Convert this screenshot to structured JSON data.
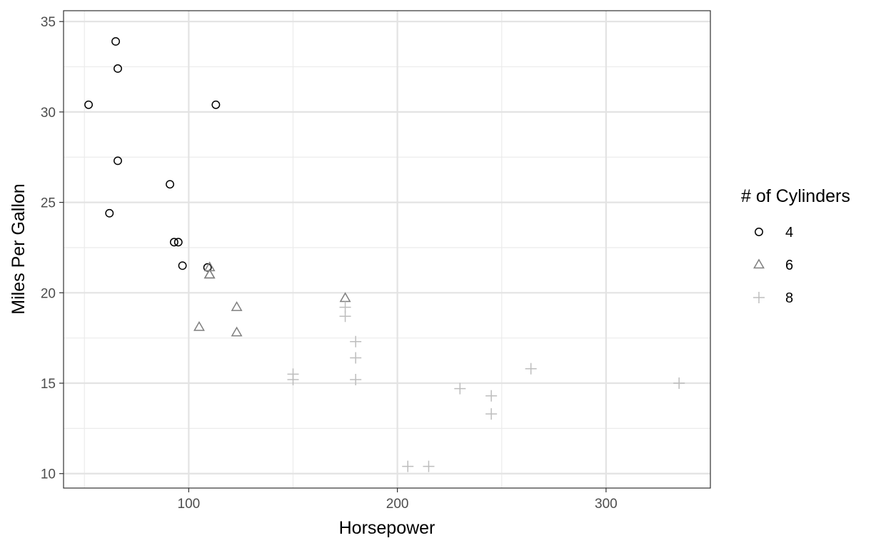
{
  "chart_data": {
    "type": "scatter",
    "title": "",
    "xlabel": "Horsepower",
    "ylabel": "Miles Per Gallon",
    "xlim": [
      40,
      350
    ],
    "ylim": [
      9.2,
      35.6
    ],
    "x_ticks": [
      100,
      200,
      300
    ],
    "y_ticks": [
      10,
      15,
      20,
      25,
      30,
      35
    ],
    "x_tick_labels": [
      "100",
      "200",
      "300"
    ],
    "y_tick_labels": [
      "10",
      "15",
      "20",
      "25",
      "30",
      "35"
    ],
    "grid": true,
    "legend": {
      "title": "# of Cylinders",
      "position": "right"
    },
    "series": [
      {
        "name": "4",
        "shape": "circle",
        "color": "#000000",
        "points": [
          [
            93,
            22.8
          ],
          [
            62,
            24.4
          ],
          [
            95,
            22.8
          ],
          [
            66,
            32.4
          ],
          [
            52,
            30.4
          ],
          [
            65,
            33.9
          ],
          [
            97,
            21.5
          ],
          [
            66,
            27.3
          ],
          [
            91,
            26.0
          ],
          [
            113,
            30.4
          ],
          [
            109,
            21.4
          ]
        ]
      },
      {
        "name": "6",
        "shape": "triangle",
        "color": "#7f7f7f",
        "points": [
          [
            110,
            21.0
          ],
          [
            110,
            21.0
          ],
          [
            110,
            21.4
          ],
          [
            105,
            18.1
          ],
          [
            123,
            19.2
          ],
          [
            123,
            17.8
          ],
          [
            175,
            19.7
          ]
        ]
      },
      {
        "name": "8",
        "shape": "plus",
        "color": "#bdbdbd",
        "points": [
          [
            175,
            18.7
          ],
          [
            245,
            14.3
          ],
          [
            180,
            16.4
          ],
          [
            180,
            17.3
          ],
          [
            180,
            15.2
          ],
          [
            205,
            10.4
          ],
          [
            215,
            10.4
          ],
          [
            230,
            14.7
          ],
          [
            150,
            15.5
          ],
          [
            150,
            15.2
          ],
          [
            245,
            13.3
          ],
          [
            175,
            19.2
          ],
          [
            264,
            15.8
          ],
          [
            335,
            15.0
          ]
        ]
      }
    ]
  }
}
